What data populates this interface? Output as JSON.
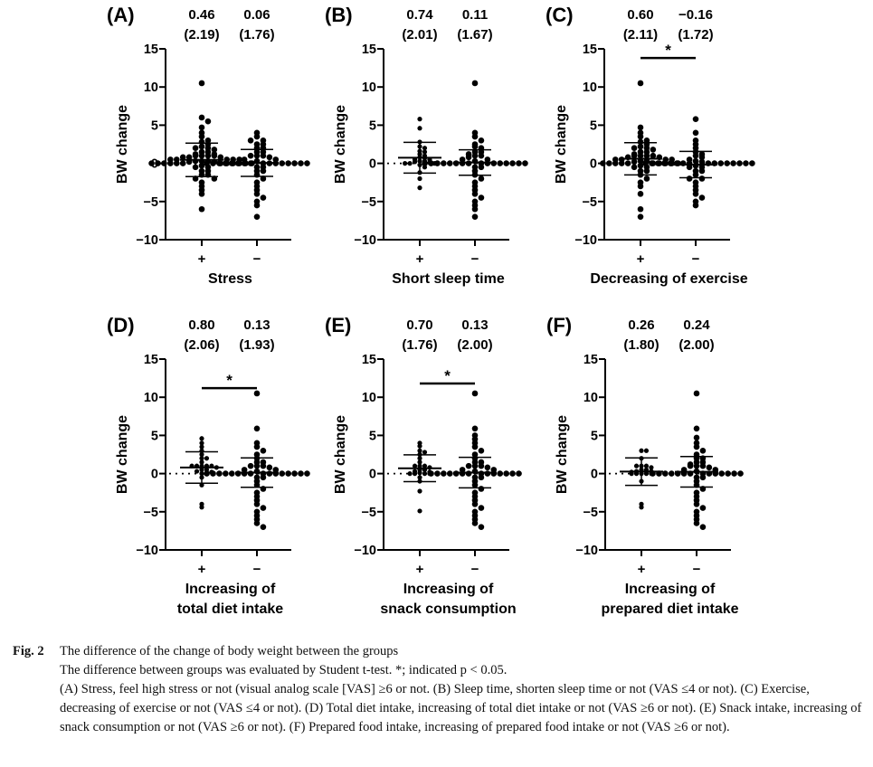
{
  "chart_data": [
    {
      "type": "scatter",
      "panel": "(A)",
      "title": "",
      "xlabel": "Stress",
      "ylabel": "BW change",
      "ylim": [
        -10,
        15
      ],
      "yticks": [
        15,
        10,
        5,
        0,
        -5,
        -10
      ],
      "ytick_labels": [
        "15",
        "10",
        "5",
        "0",
        "−5",
        "−10"
      ],
      "categories": [
        "+",
        "−"
      ],
      "annotations": [
        {
          "mean": "0.46",
          "sd": "(2.19)"
        },
        {
          "mean": "0.06",
          "sd": "(1.76)"
        }
      ],
      "significance": null,
      "series": [
        {
          "name": "+",
          "mean": 0.46,
          "sd": 2.19,
          "values": [
            10.5,
            6,
            5.5,
            4.7,
            4,
            3.5,
            3,
            2.8,
            2.5,
            2.2,
            2,
            2,
            1.8,
            1.5,
            1.5,
            1.2,
            1.2,
            1,
            1,
            1,
            1,
            0.8,
            0.8,
            0.8,
            0.5,
            0.5,
            0.5,
            0.5,
            0.5,
            0.3,
            0.3,
            0.3,
            0.2,
            0.2,
            0,
            0,
            0,
            0,
            0,
            0,
            0,
            0,
            0,
            0,
            0,
            0,
            -0.3,
            -0.5,
            -0.5,
            -1,
            -1,
            -1.5,
            -1.5,
            -2,
            -2,
            -2.5,
            -3,
            -3.5,
            -4,
            -6
          ]
        },
        {
          "name": "−",
          "mean": 0.06,
          "sd": 1.76,
          "values": [
            4,
            3.5,
            3,
            3,
            2.5,
            2.5,
            2,
            2,
            1.5,
            1.5,
            1,
            1,
            1,
            0.8,
            0.5,
            0.5,
            0.3,
            0,
            0,
            0,
            0,
            0,
            0,
            0,
            0,
            0,
            0,
            0,
            0,
            0,
            0,
            0,
            0,
            -0.5,
            -0.5,
            -1,
            -1,
            -1.5,
            -2,
            -2.5,
            -3,
            -3.5,
            -4,
            -4.5,
            -5,
            -5.5,
            -7
          ]
        }
      ]
    },
    {
      "type": "scatter",
      "panel": "(B)",
      "title": "",
      "xlabel": "Short sleep time",
      "ylabel": "BW change",
      "ylim": [
        -10,
        15
      ],
      "yticks": [
        15,
        10,
        5,
        0,
        -5,
        -10
      ],
      "ytick_labels": [
        "15",
        "10",
        "5",
        "0",
        "−5",
        "−10"
      ],
      "categories": [
        "+",
        "−"
      ],
      "annotations": [
        {
          "mean": "0.74",
          "sd": "(2.01)"
        },
        {
          "mean": "0.11",
          "sd": "(1.67)"
        }
      ],
      "significance": null,
      "series": [
        {
          "name": "+",
          "mean": 0.74,
          "sd": 2.01,
          "values": [
            5.8,
            4.6,
            2.8,
            2.2,
            2,
            1.6,
            1.5,
            1.2,
            1,
            0.8,
            0.7,
            0.5,
            0.5,
            0.3,
            0.3,
            0.2,
            0.1,
            0,
            0,
            0,
            -0.2,
            -0.5,
            -1.2,
            -2,
            -3.2
          ]
        },
        {
          "name": "−",
          "mean": 0.11,
          "sd": 1.67,
          "values": [
            10.5,
            4,
            3.5,
            3,
            2.5,
            2.2,
            2,
            1.5,
            1.5,
            1.2,
            1,
            1,
            0.8,
            0.5,
            0.5,
            0.3,
            0,
            0,
            0,
            0,
            0,
            0,
            0,
            0,
            0,
            0,
            0,
            0,
            0,
            0,
            0,
            0,
            -0.5,
            -0.5,
            -1,
            -1.5,
            -2,
            -2.5,
            -3,
            -3.5,
            -4,
            -4.5,
            -5,
            -5.5,
            -6,
            -7
          ]
        }
      ]
    },
    {
      "type": "scatter",
      "panel": "(C)",
      "title": "",
      "xlabel": "Decreasing of exercise",
      "ylabel": "BW change",
      "ylim": [
        -10,
        15
      ],
      "yticks": [
        15,
        10,
        5,
        0,
        -5,
        -10
      ],
      "ytick_labels": [
        "15",
        "10",
        "5",
        "0",
        "−5",
        "−10"
      ],
      "categories": [
        "+",
        "−"
      ],
      "annotations": [
        {
          "mean": "0.60",
          "sd": "(2.11)"
        },
        {
          "mean": "−0.16",
          "sd": "(1.72)"
        }
      ],
      "significance": {
        "label": "*",
        "y": 13.8
      },
      "series": [
        {
          "name": "+",
          "mean": 0.6,
          "sd": 2.11,
          "values": [
            10.5,
            4.7,
            4,
            3.5,
            3,
            2.8,
            2.5,
            2.2,
            2,
            2,
            1.8,
            1.5,
            1.5,
            1.2,
            1,
            1,
            1,
            1,
            0.8,
            0.8,
            0.5,
            0.5,
            0.5,
            0.5,
            0.3,
            0.3,
            0.2,
            0,
            0,
            0,
            0,
            0,
            0,
            0,
            0,
            0,
            0,
            -0.3,
            -0.5,
            -0.5,
            -1,
            -1,
            -1.5,
            -2,
            -2.5,
            -3,
            -4,
            -6,
            -7
          ]
        },
        {
          "name": "−",
          "mean": -0.16,
          "sd": 1.72,
          "values": [
            5.8,
            4,
            3,
            2.5,
            2,
            1.5,
            1.2,
            1,
            0.8,
            0.5,
            0.3,
            0.2,
            0,
            0,
            0,
            0,
            0,
            0,
            0,
            0,
            0,
            0,
            0,
            0,
            0,
            0,
            0,
            0,
            -0.3,
            -0.5,
            -0.5,
            -1,
            -1,
            -1.5,
            -2,
            -2,
            -2.5,
            -3,
            -3.5,
            -4,
            -4.5,
            -5,
            -5.5
          ]
        }
      ]
    },
    {
      "type": "scatter",
      "panel": "(D)",
      "title": "",
      "xlabel": "Increasing of\ntotal diet intake",
      "ylabel": "BW change",
      "ylim": [
        -10,
        15
      ],
      "yticks": [
        15,
        10,
        5,
        0,
        -5,
        -10
      ],
      "ytick_labels": [
        "15",
        "10",
        "5",
        "0",
        "−5",
        "−10"
      ],
      "categories": [
        "+",
        "−"
      ],
      "annotations": [
        {
          "mean": "0.80",
          "sd": "(2.06)"
        },
        {
          "mean": "0.13",
          "sd": "(1.93)"
        }
      ],
      "significance": {
        "label": "*",
        "y": 11.2
      },
      "series": [
        {
          "name": "+",
          "mean": 0.8,
          "sd": 2.06,
          "values": [
            4.6,
            4,
            3.5,
            3,
            2.5,
            2,
            2,
            1.5,
            1,
            1,
            1,
            1,
            1,
            0.8,
            0.5,
            0.5,
            0.3,
            0.2,
            0,
            0,
            -0.5,
            -1.5,
            -4,
            -4.4
          ]
        },
        {
          "name": "−",
          "mean": 0.13,
          "sd": 1.93,
          "values": [
            10.5,
            5.9,
            4,
            3.5,
            3,
            2.5,
            2,
            1.5,
            1.5,
            1,
            1,
            1,
            0.8,
            0.5,
            0.5,
            0.3,
            0,
            0,
            0,
            0,
            0,
            0,
            0,
            0,
            0,
            0,
            0,
            0,
            0,
            0,
            0,
            0,
            -0.5,
            -0.5,
            -1,
            -1.5,
            -2,
            -2.5,
            -3,
            -3.5,
            -4,
            -4.5,
            -5,
            -5.5,
            -6,
            -6.5,
            -7
          ]
        }
      ]
    },
    {
      "type": "scatter",
      "panel": "(E)",
      "title": "",
      "xlabel": "Increasing of\nsnack consumption",
      "ylabel": "BW change",
      "ylim": [
        -10,
        15
      ],
      "yticks": [
        15,
        10,
        5,
        0,
        -5,
        -10
      ],
      "ytick_labels": [
        "15",
        "10",
        "5",
        "0",
        "−5",
        "−10"
      ],
      "categories": [
        "+",
        "−"
      ],
      "annotations": [
        {
          "mean": "0.70",
          "sd": "(1.76)"
        },
        {
          "mean": "0.13",
          "sd": "(2.00)"
        }
      ],
      "significance": {
        "label": "*",
        "y": 11.8
      },
      "series": [
        {
          "name": "+",
          "mean": 0.7,
          "sd": 1.76,
          "values": [
            4,
            3.6,
            3,
            2.8,
            2.5,
            2,
            1.5,
            1,
            1,
            1,
            0.8,
            0.5,
            0.5,
            0.3,
            0.2,
            0.1,
            0,
            0,
            0,
            0,
            -0.5,
            -1,
            -2.3,
            -4.9
          ]
        },
        {
          "name": "−",
          "mean": 0.13,
          "sd": 2.0,
          "values": [
            10.5,
            5.9,
            5,
            4.5,
            4,
            3.5,
            3,
            2.5,
            2,
            1.5,
            1.5,
            1,
            1,
            1,
            0.8,
            0.5,
            0.5,
            0.3,
            0,
            0,
            0,
            0,
            0,
            0,
            0,
            0,
            0,
            0,
            0,
            0,
            0,
            0,
            -0.5,
            -0.5,
            -1,
            -1.5,
            -2,
            -2.5,
            -3,
            -3.5,
            -4,
            -4.5,
            -5,
            -5.5,
            -6,
            -6.5,
            -7
          ]
        }
      ]
    },
    {
      "type": "scatter",
      "panel": "(F)",
      "title": "",
      "xlabel": "Increasing of\nprepared diet intake",
      "ylabel": "BW change",
      "ylim": [
        -10,
        15
      ],
      "yticks": [
        15,
        10,
        5,
        0,
        -5,
        -10
      ],
      "ytick_labels": [
        "15",
        "10",
        "5",
        "0",
        "−5",
        "−10"
      ],
      "categories": [
        "+",
        "−"
      ],
      "annotations": [
        {
          "mean": "0.26",
          "sd": "(1.80)"
        },
        {
          "mean": "0.24",
          "sd": "(2.00)"
        }
      ],
      "significance": null,
      "series": [
        {
          "name": "+",
          "mean": 0.26,
          "sd": 1.8,
          "values": [
            3,
            3,
            2,
            1,
            1,
            1,
            0.8,
            0.5,
            0.5,
            0.3,
            0.3,
            0.2,
            0,
            0,
            0,
            0,
            0,
            -1,
            -4,
            -4.4
          ]
        },
        {
          "name": "−",
          "mean": 0.24,
          "sd": 2.0,
          "values": [
            10.5,
            5.9,
            4.7,
            4,
            3.5,
            3,
            2.5,
            2,
            2,
            1.5,
            1.5,
            1.2,
            1,
            1,
            1,
            0.8,
            0.5,
            0.5,
            0.3,
            0,
            0,
            0,
            0,
            0,
            0,
            0,
            0,
            0,
            0,
            0,
            0,
            0,
            0,
            -0.5,
            -0.5,
            -1,
            -1.5,
            -2,
            -2.5,
            -3,
            -3.5,
            -4,
            -4.5,
            -5,
            -5.5,
            -6,
            -6.5,
            -7
          ]
        }
      ]
    }
  ],
  "caption": {
    "fig_label": "Fig. 2",
    "title": "The difference of the change of body weight between the groups",
    "lines": [
      "The difference between groups was evaluated by Student t-test. *; indicated p < 0.05.",
      "(A) Stress, feel high stress or not (visual analog scale [VAS] ≥6 or not. (B) Sleep time, shorten sleep time or not (VAS ≤4 or not). (C) Exercise, decreasing of exercise or not (VAS ≤4 or not). (D) Total diet intake, increasing of total diet intake or not (VAS ≥6 or not). (E) Snack intake, increasing of snack consumption or not (VAS ≥6 or not). (F) Prepared food intake, increasing of prepared food intake or not (VAS ≥6 or not)."
    ]
  }
}
